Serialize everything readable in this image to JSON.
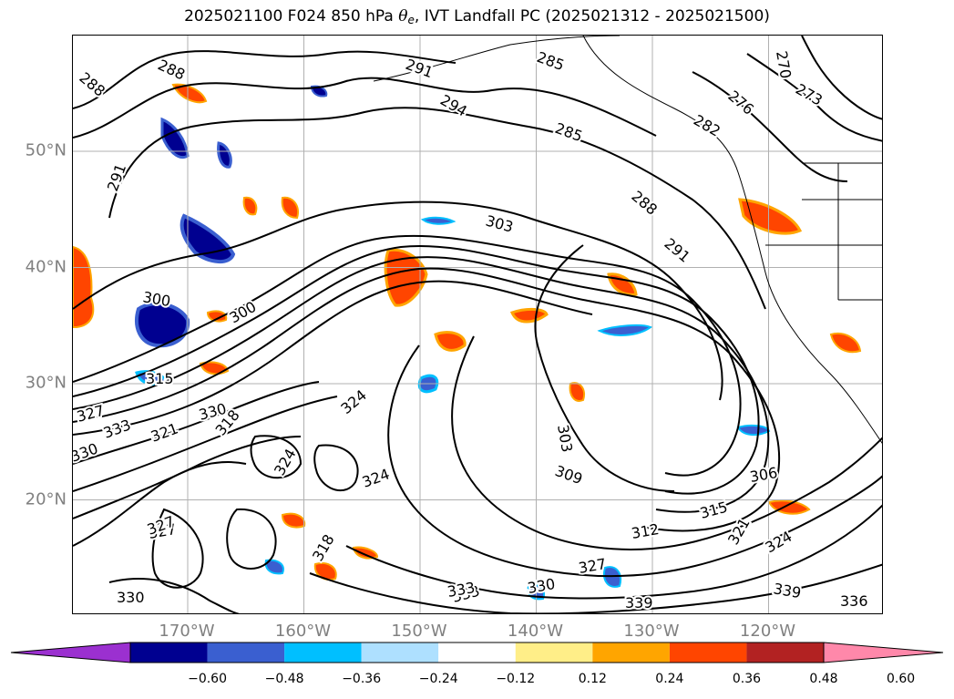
{
  "title": {
    "prefix": "2025021100 F024 850 hPa ",
    "theta": "θ",
    "theta_sub": "e",
    "suffix": ", IVT Landfall PC (2025021312 - 2025021500)"
  },
  "latitude_labels": [
    "50°N",
    "40°N",
    "30°N",
    "20°N"
  ],
  "longitude_labels": [
    "170°W",
    "160°W",
    "150°W",
    "140°W",
    "130°W",
    "120°W"
  ],
  "latitudes": [
    50,
    40,
    30,
    20
  ],
  "longitudes": [
    -170,
    -160,
    -150,
    -140,
    -130,
    -120
  ],
  "contour_labels": [
    "288",
    "288",
    "291",
    "291",
    "285",
    "294",
    "285",
    "288",
    "270",
    "276",
    "273",
    "282",
    "291",
    "303",
    "300",
    "300",
    "315",
    "327",
    "330",
    "333",
    "321",
    "318",
    "330",
    "324",
    "324",
    "327",
    "324",
    "303",
    "309",
    "306",
    "312",
    "315",
    "327",
    "333",
    "330",
    "333",
    "339",
    "339",
    "336",
    "321",
    "324",
    "327",
    "330",
    "318"
  ],
  "colorbar": {
    "ticks": [
      "−0.60",
      "−0.48",
      "−0.36",
      "−0.24",
      "−0.12",
      "0.12",
      "0.24",
      "0.36",
      "0.48",
      "0.60"
    ],
    "colors": [
      "#9b30d0",
      "#000090",
      "#3a5fd0",
      "#00bfff",
      "#aee0ff",
      "#ffffff",
      "#ffee88",
      "#ffa500",
      "#ff4500",
      "#b22222",
      "#ff88aa"
    ]
  }
}
